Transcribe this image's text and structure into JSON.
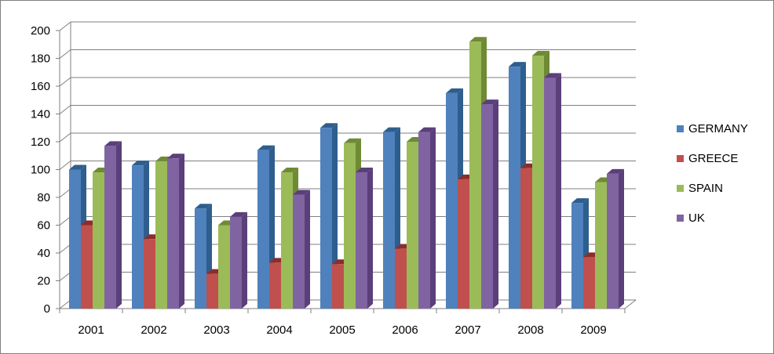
{
  "chart_data": {
    "type": "bar",
    "categories": [
      "2001",
      "2002",
      "2003",
      "2004",
      "2005",
      "2006",
      "2007",
      "2008",
      "2009"
    ],
    "series": [
      {
        "name": "GERMANY",
        "color": "#4F81BD",
        "side": "#2E5E8E",
        "values": [
          100,
          103,
          72,
          114,
          130,
          127,
          155,
          174,
          76
        ]
      },
      {
        "name": "GREECE",
        "color": "#C0504D",
        "side": "#8B2D2A",
        "values": [
          60,
          50,
          25,
          33,
          32,
          43,
          93,
          101,
          37
        ]
      },
      {
        "name": "SPAIN",
        "color": "#9BBB59",
        "side": "#6E8A35",
        "values": [
          98,
          106,
          60,
          98,
          119,
          120,
          192,
          182,
          91
        ]
      },
      {
        "name": "UK",
        "color": "#8064A2",
        "side": "#5A3F7A",
        "values": [
          117,
          108,
          66,
          82,
          98,
          127,
          147,
          166,
          97
        ]
      }
    ],
    "yticks": [
      "0",
      "20",
      "40",
      "60",
      "80",
      "100",
      "120",
      "140",
      "160",
      "180",
      "200"
    ],
    "ylim": [
      0,
      200
    ],
    "grid": true,
    "legend_position": "right",
    "title": "",
    "xlabel": "",
    "ylabel": ""
  }
}
